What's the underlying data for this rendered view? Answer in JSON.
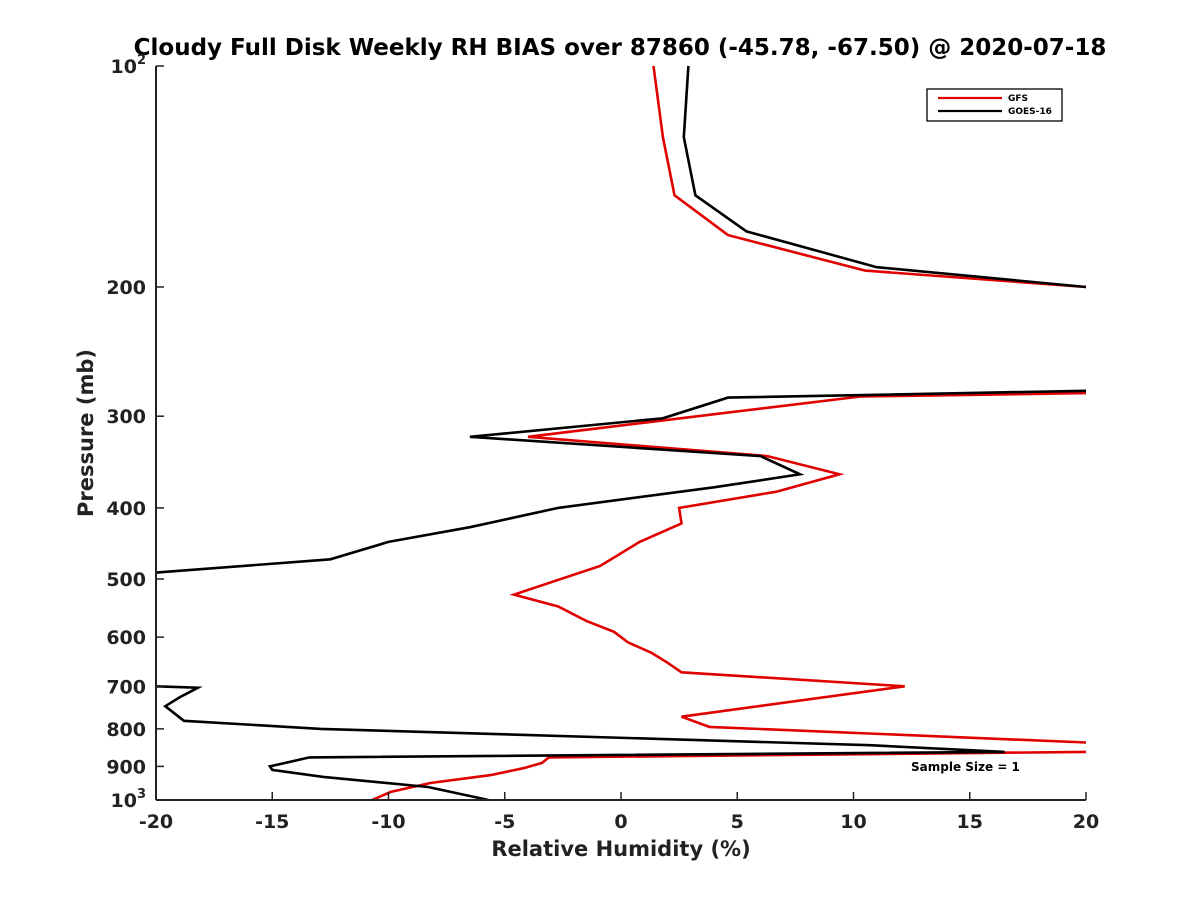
{
  "chart_data": {
    "type": "line",
    "title": "Cloudy Full Disk Weekly RH BIAS over 87860 (-45.78, -67.50) @ 2020-07-18",
    "xlabel": "Relative Humidity (%)",
    "ylabel": "Pressure (mb)",
    "xlim": [
      -20,
      20
    ],
    "ylim": [
      100,
      1000
    ],
    "yscale": "log",
    "y_reversed": true,
    "x_ticks": [
      "-20",
      "-15",
      "-10",
      "-5",
      "0",
      "5",
      "10",
      "15",
      "20"
    ],
    "y_ticks": [
      {
        "value": 100,
        "label": "10",
        "sup": "2"
      },
      {
        "value": 200,
        "label": "200",
        "sup": ""
      },
      {
        "value": 300,
        "label": "300",
        "sup": ""
      },
      {
        "value": 400,
        "label": "400",
        "sup": ""
      },
      {
        "value": 500,
        "label": "500",
        "sup": ""
      },
      {
        "value": 600,
        "label": "600",
        "sup": ""
      },
      {
        "value": 700,
        "label": "700",
        "sup": ""
      },
      {
        "value": 800,
        "label": "800",
        "sup": ""
      },
      {
        "value": 900,
        "label": "900",
        "sup": ""
      },
      {
        "value": 1000,
        "label": "10",
        "sup": "3"
      }
    ],
    "grid": false,
    "legend_position": "top-right",
    "annotation": "Sample Size = 1",
    "series": [
      {
        "name": "GFS",
        "color": "#e00000",
        "points": [
          [
            1.4,
            100
          ],
          [
            1.8,
            125
          ],
          [
            2.3,
            150
          ],
          [
            4.6,
            170
          ],
          [
            10.5,
            190
          ],
          [
            20,
            200
          ],
          [
            null,
            null
          ],
          [
            20,
            279
          ],
          [
            10.3,
            282
          ],
          [
            -4.0,
            320
          ],
          [
            6.3,
            340
          ],
          [
            9.4,
            360
          ],
          [
            6.7,
            380
          ],
          [
            2.5,
            400
          ],
          [
            2.6,
            420
          ],
          [
            0.8,
            445
          ],
          [
            -0.9,
            480
          ],
          [
            -3.0,
            505
          ],
          [
            -4.6,
            525
          ],
          [
            -2.7,
            545
          ],
          [
            -1.5,
            570
          ],
          [
            -0.3,
            590
          ],
          [
            0.3,
            610
          ],
          [
            1.3,
            630
          ],
          [
            2.0,
            650
          ],
          [
            2.6,
            670
          ],
          [
            12.2,
            700
          ],
          [
            2.6,
            770
          ],
          [
            3.8,
            795
          ],
          [
            20,
            835
          ],
          [
            null,
            null
          ],
          [
            20,
            860
          ],
          [
            -3.1,
            875
          ],
          [
            -3.4,
            890
          ],
          [
            -4.2,
            905
          ],
          [
            -5.6,
            925
          ],
          [
            -8.2,
            948
          ],
          [
            -9.9,
            975
          ],
          [
            -10.7,
            1000
          ]
        ]
      },
      {
        "name": "GOES-16",
        "color": "#000000",
        "points": [
          [
            2.9,
            100
          ],
          [
            2.7,
            125
          ],
          [
            3.2,
            150
          ],
          [
            5.4,
            168
          ],
          [
            11.0,
            188
          ],
          [
            20,
            200
          ],
          [
            null,
            null
          ],
          [
            20,
            277
          ],
          [
            4.6,
            283
          ],
          [
            1.8,
            302
          ],
          [
            -6.5,
            320
          ],
          [
            6.0,
            340
          ],
          [
            7.7,
            360
          ],
          [
            4.0,
            375
          ],
          [
            -2.7,
            400
          ],
          [
            -6.5,
            425
          ],
          [
            -10.0,
            445
          ],
          [
            -12.5,
            470
          ],
          [
            -20,
            490
          ],
          [
            null,
            null
          ],
          [
            -20,
            700
          ],
          [
            -18.2,
            703
          ],
          [
            -19.0,
            725
          ],
          [
            -19.6,
            745
          ],
          [
            -18.8,
            780
          ],
          [
            -12.9,
            800
          ],
          [
            10.7,
            842
          ],
          [
            16.5,
            860
          ],
          [
            -13.4,
            875
          ],
          [
            -15.1,
            900
          ],
          [
            -15.0,
            910
          ],
          [
            -12.8,
            930
          ],
          [
            -8.3,
            960
          ],
          [
            -5.7,
            1000
          ]
        ]
      }
    ]
  }
}
